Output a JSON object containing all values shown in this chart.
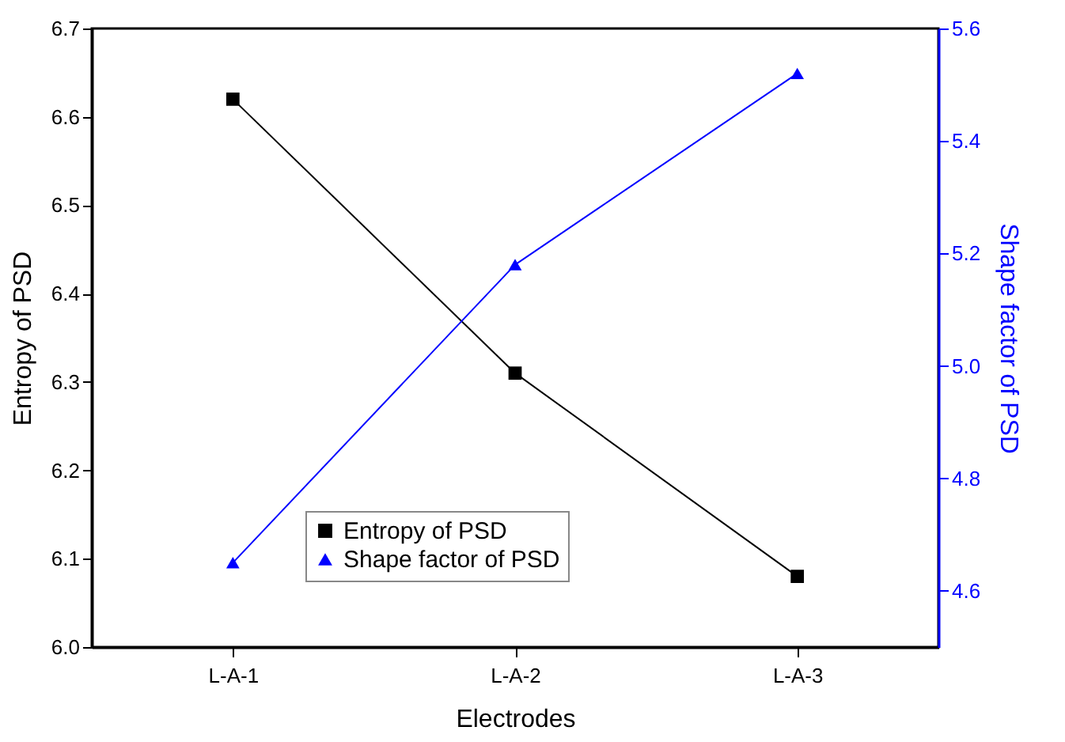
{
  "chart_data": {
    "type": "line",
    "xlabel": "Electrodes",
    "ylabel": "Entropy of PSD",
    "y2label": "Shape factor of PSD",
    "categories": [
      "L-A-1",
      "L-A-2",
      "L-A-3"
    ],
    "series": [
      {
        "name": "Entropy of PSD",
        "color": "#000000",
        "marker": "square",
        "values": [
          6.62,
          6.31,
          6.08
        ]
      },
      {
        "name": "Shape factor of PSD",
        "color": "#0000ff",
        "marker": "triangle",
        "axis": "y2",
        "values": [
          4.65,
          5.18,
          5.52
        ]
      }
    ],
    "ylim": [
      6.0,
      6.7
    ],
    "yticks": [
      {
        "value": 6.0,
        "label": "6.0"
      },
      {
        "value": 6.1,
        "label": "6.1"
      },
      {
        "value": 6.2,
        "label": "6.2"
      },
      {
        "value": 6.3,
        "label": "6.3"
      },
      {
        "value": 6.4,
        "label": "6.4"
      },
      {
        "value": 6.5,
        "label": "6.5"
      },
      {
        "value": 6.6,
        "label": "6.6"
      },
      {
        "value": 6.7,
        "label": "6.7"
      }
    ],
    "y2lim": [
      4.5,
      5.6
    ],
    "y2ticks": [
      {
        "value": 4.6,
        "label": "4.6"
      },
      {
        "value": 4.8,
        "label": "4.8"
      },
      {
        "value": 5.0,
        "label": "5.0"
      },
      {
        "value": 5.2,
        "label": "5.2"
      },
      {
        "value": 5.4,
        "label": "5.4"
      },
      {
        "value": 5.6,
        "label": "5.6"
      }
    ],
    "legend": "bottom"
  }
}
